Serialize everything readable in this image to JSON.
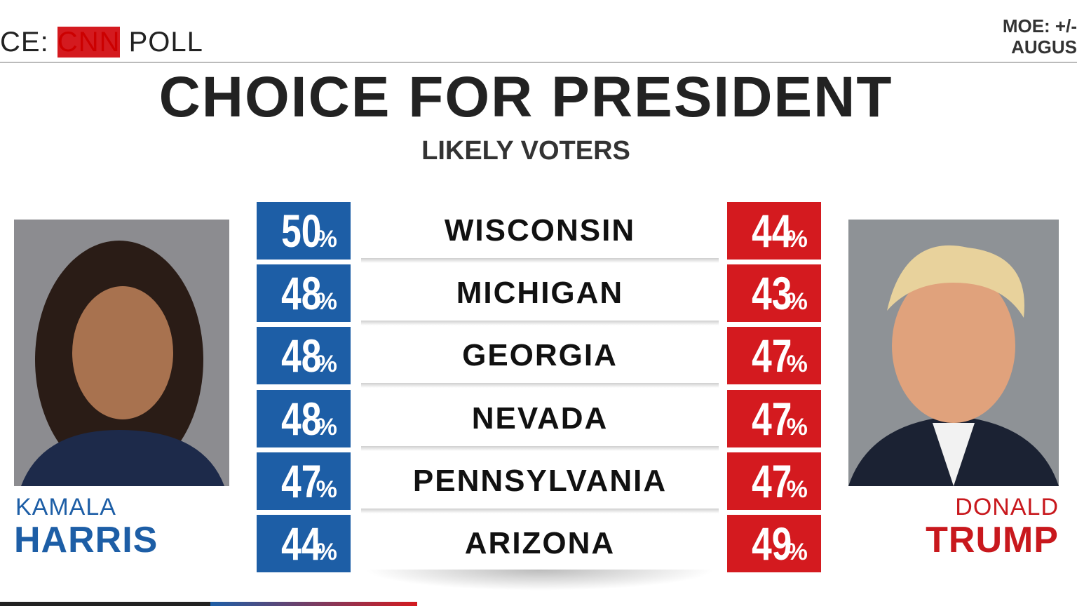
{
  "header": {
    "source_prefix": "CE:",
    "source_name": "CNN",
    "source_suffix": "POLL",
    "moe": "MOE: +/-",
    "date": "AUGUS"
  },
  "title": "CHOICE FOR PRESIDENT",
  "subtitle": "LIKELY VOTERS",
  "candidates": {
    "left": {
      "first": "KAMALA",
      "last": "HARRIS"
    },
    "right": {
      "first": "DONALD",
      "last": "TRUMP"
    }
  },
  "percent_sign": "%",
  "table": {
    "rows": [
      {
        "state": "WISCONSIN",
        "harris": 50,
        "trump": 44
      },
      {
        "state": "MICHIGAN",
        "harris": 48,
        "trump": 43
      },
      {
        "state": "GEORGIA",
        "harris": 48,
        "trump": 47
      },
      {
        "state": "NEVADA",
        "harris": 48,
        "trump": 47
      },
      {
        "state": "PENNSYLVANIA",
        "harris": 47,
        "trump": 47
      },
      {
        "state": "ARIZONA",
        "harris": 44,
        "trump": 49
      }
    ]
  }
}
